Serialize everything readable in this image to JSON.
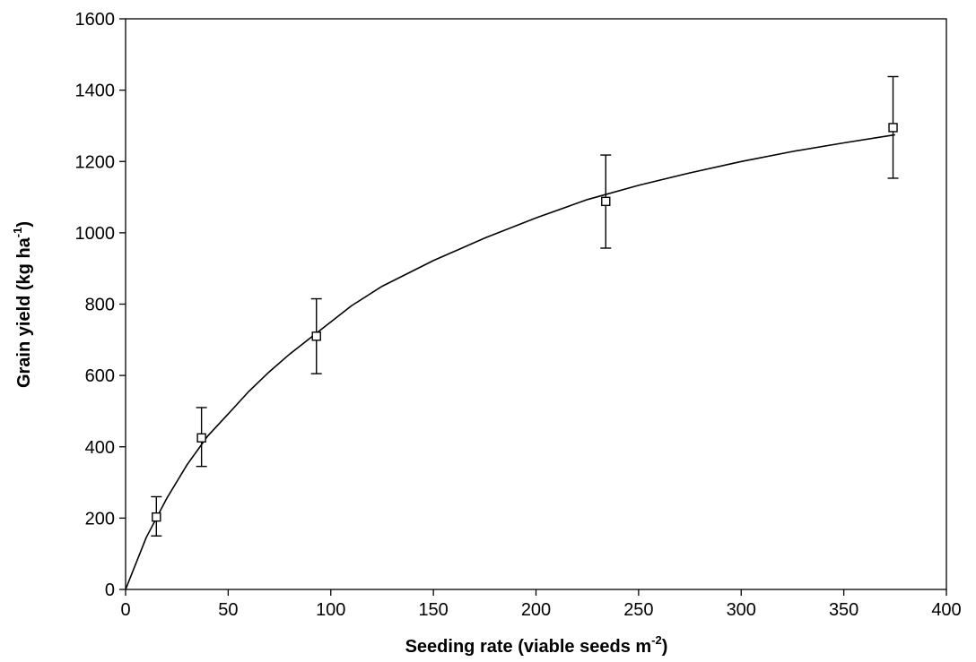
{
  "chart_data": {
    "type": "scatter",
    "title": "",
    "xlabel": {
      "main": "Seeding rate (viable seeds m",
      "sup": "-2",
      "tail": ")"
    },
    "ylabel": {
      "main": "Grain yield (kg ha",
      "sup": "-1",
      "tail": ")"
    },
    "xlim": [
      0,
      400
    ],
    "ylim": [
      0,
      1600
    ],
    "xticks": [
      0,
      50,
      100,
      150,
      200,
      250,
      300,
      350,
      400
    ],
    "yticks": [
      0,
      200,
      400,
      600,
      800,
      1000,
      1200,
      1400,
      1600
    ],
    "grid": false,
    "legend": "none",
    "series": [
      {
        "marker": "open-square",
        "points": [
          {
            "x": 15,
            "y": 203,
            "err_low": 150,
            "err_high": 260
          },
          {
            "x": 37,
            "y": 425,
            "err_low": 345,
            "err_high": 510
          },
          {
            "x": 93,
            "y": 710,
            "err_low": 605,
            "err_high": 815
          },
          {
            "x": 234,
            "y": 1088,
            "err_low": 957,
            "err_high": 1218
          },
          {
            "x": 374,
            "y": 1295,
            "err_low": 1153,
            "err_high": 1438
          }
        ]
      }
    ],
    "fitted_curve": {
      "x": [
        0,
        10,
        20,
        30,
        40,
        50,
        60,
        70,
        80,
        90,
        100,
        110,
        125,
        150,
        175,
        200,
        225,
        250,
        275,
        300,
        325,
        350,
        375
      ],
      "y": [
        0,
        145,
        255,
        350,
        430,
        492,
        555,
        610,
        660,
        705,
        750,
        795,
        850,
        922,
        985,
        1042,
        1093,
        1133,
        1168,
        1200,
        1228,
        1252,
        1275
      ]
    }
  }
}
